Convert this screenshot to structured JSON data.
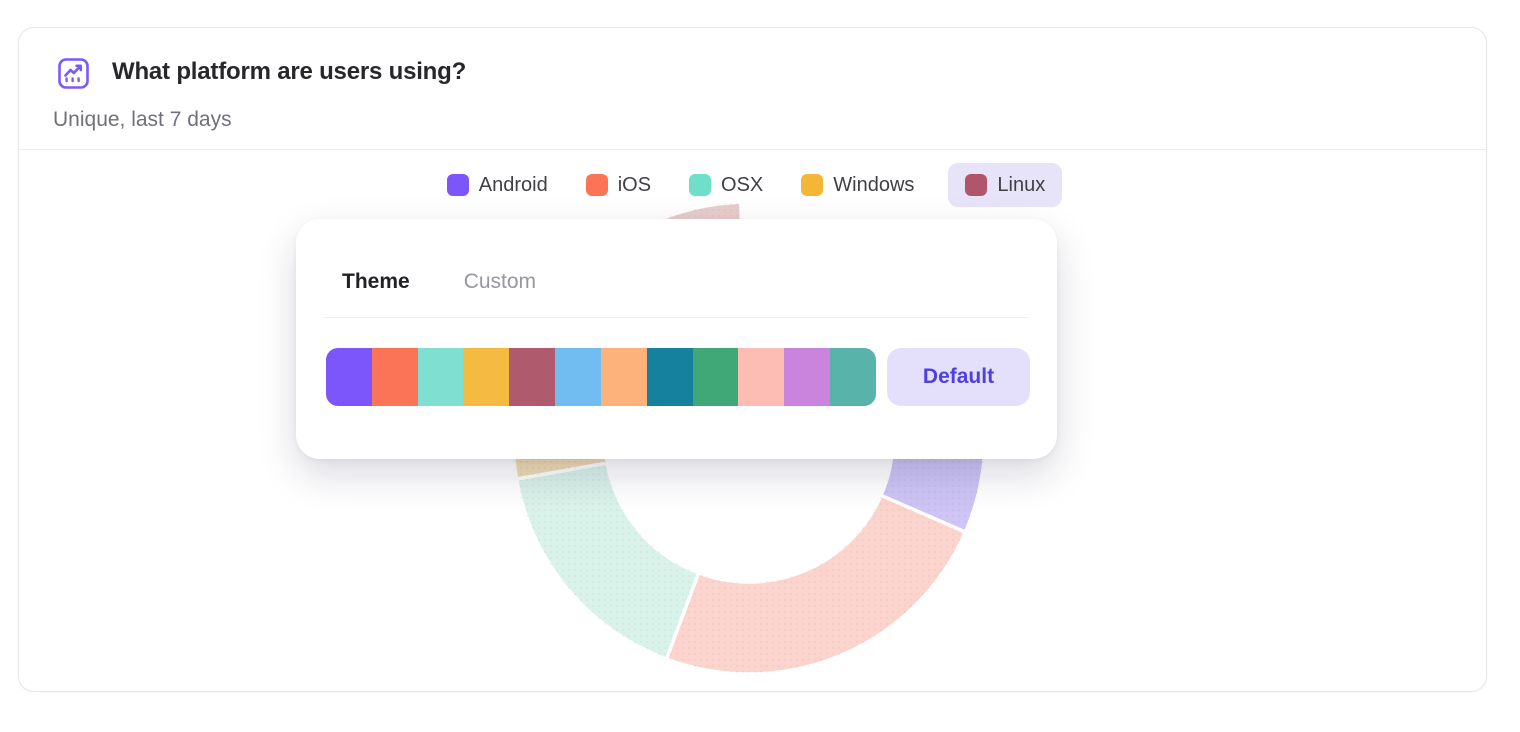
{
  "header": {
    "title": "What platform are users using?",
    "subtitle": "Unique, last 7 days",
    "icon": "line-chart-icon",
    "icon_color": "#7C5AFA"
  },
  "legend": {
    "items": [
      {
        "label": "Android",
        "color": "#7C55FB",
        "highlighted": false
      },
      {
        "label": "iOS",
        "color": "#FC7457",
        "highlighted": false
      },
      {
        "label": "OSX",
        "color": "#70DFC9",
        "highlighted": false
      },
      {
        "label": "Windows",
        "color": "#F4B636",
        "highlighted": false
      },
      {
        "label": "Linux",
        "color": "#B0556A",
        "highlighted": true
      }
    ],
    "highlight_bg": "#E7E3F9"
  },
  "chart_data": {
    "type": "pie",
    "subtype": "donut",
    "title": "What platform are users using?",
    "legend_position": "top",
    "state": "dimmed (color picker open): segments faded with dot texture, partly covered by popover",
    "inner_radius_ratio": 0.61,
    "series": [
      {
        "name": "Android",
        "value_percent": 25,
        "start_deg": 22,
        "end_deg": 113.5,
        "color": "#7C55FB",
        "faded_color": "#CEC5F6"
      },
      {
        "name": "iOS",
        "value_percent": 24,
        "start_deg": 113.5,
        "end_deg": 200.5,
        "color": "#FC7457",
        "faded_color": "#FBD4CD"
      },
      {
        "name": "OSX",
        "value_percent": 17,
        "start_deg": 200.5,
        "end_deg": 260,
        "color": "#70DFC9",
        "faded_color": "#D9F2EA"
      },
      {
        "name": "Windows",
        "value_percent": 14,
        "start_deg": 260,
        "end_deg": 312,
        "color": "#F4B636",
        "faded_color": "#F0DCB3"
      },
      {
        "name": "Linux",
        "value_percent": 13,
        "start_deg": 312,
        "end_deg": 358,
        "color": "#B0556A",
        "faded_color": "#E9CCCC"
      }
    ]
  },
  "popover": {
    "tabs": [
      {
        "label": "Theme",
        "active": true
      },
      {
        "label": "Custom",
        "active": false
      }
    ],
    "palette": {
      "colors": [
        "#7C55FB",
        "#FC7457",
        "#7FE0D1",
        "#F5BA42",
        "#B05A6D",
        "#71BDF2",
        "#FDB17B",
        "#16809F",
        "#3FA876",
        "#FEBDB4",
        "#CB84DE",
        "#58B3AB"
      ]
    },
    "default_button_label": "Default",
    "default_button_bg": "#E4DFFB",
    "default_button_text_color": "#4E3FE0"
  }
}
